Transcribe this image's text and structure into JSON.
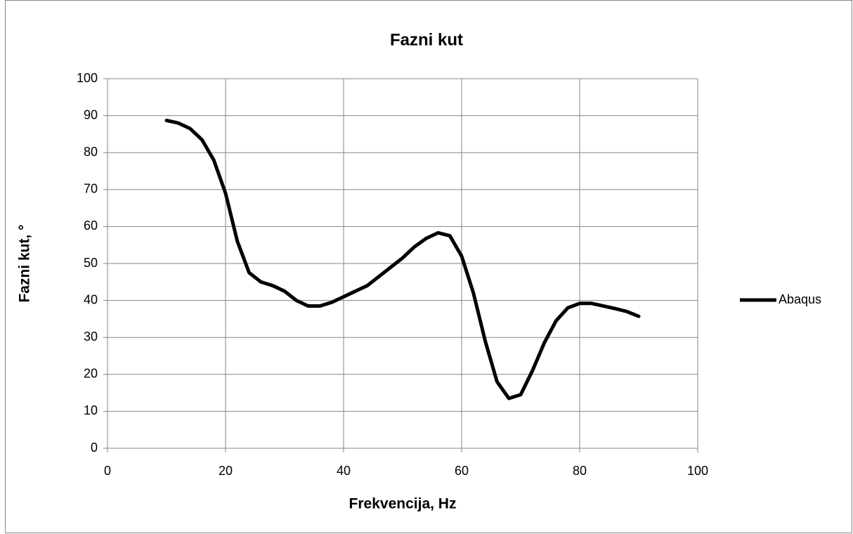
{
  "chart_data": {
    "type": "line",
    "title": "Fazni kut",
    "x_label": "Frekvencija, Hz",
    "y_label": "Fazni kut, °",
    "x": [
      10,
      12,
      14,
      16,
      18,
      20,
      22,
      24,
      26,
      28,
      30,
      32,
      34,
      36,
      38,
      40,
      42,
      44,
      46,
      48,
      50,
      52,
      54,
      56,
      58,
      60,
      62,
      64,
      66,
      68,
      70,
      72,
      74,
      76,
      78,
      80,
      82,
      84,
      86,
      88,
      90
    ],
    "series": [
      {
        "name": "Abaqus",
        "color": "#000000",
        "values": [
          88.7,
          88,
          86.5,
          83.5,
          78,
          69,
          56,
          47.5,
          45,
          44,
          42.5,
          40,
          38.5,
          38.5,
          39.5,
          41,
          42.5,
          44,
          46.5,
          49,
          51.5,
          54.5,
          56.8,
          58.3,
          57.5,
          52,
          42,
          29,
          18,
          13.5,
          14.5,
          21,
          28.5,
          34.5,
          38,
          39.2,
          39.2,
          38.5,
          37.8,
          37,
          35.7
        ]
      }
    ],
    "xlim": [
      0,
      100
    ],
    "xticks": [
      0,
      20,
      40,
      60,
      80,
      100
    ],
    "ylim": [
      0,
      100
    ],
    "yticks": [
      0,
      10,
      20,
      30,
      40,
      50,
      60,
      70,
      80,
      90,
      100
    ],
    "grid": true,
    "legend": "right"
  }
}
